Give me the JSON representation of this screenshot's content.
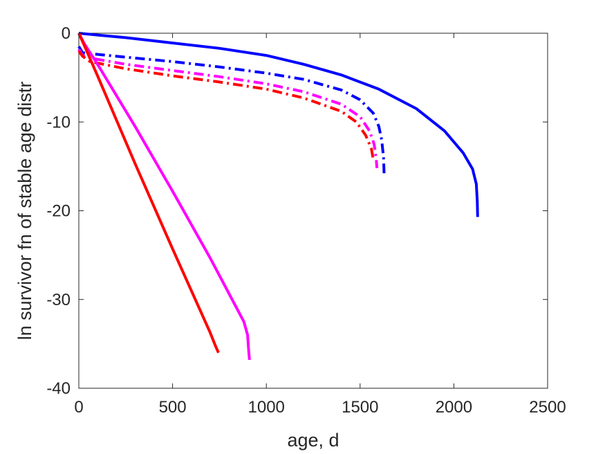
{
  "chart_data": {
    "type": "line",
    "title": "",
    "xlabel": "age, d",
    "ylabel": "ln survivor fn of stable age distr",
    "xlim": [
      0,
      2500
    ],
    "ylim": [
      -40,
      0
    ],
    "xticks": [
      0,
      500,
      1000,
      1500,
      2000,
      2500
    ],
    "yticks": [
      0,
      -10,
      -20,
      -30,
      -40
    ],
    "xtick_labels": [
      "0",
      "500",
      "1000",
      "1500",
      "2000",
      "2500"
    ],
    "ytick_labels": [
      "0",
      "-10",
      "-20",
      "-30",
      "-40"
    ],
    "grid": false,
    "legend": "none",
    "series": [
      {
        "color": "#0000ff",
        "style": "solid",
        "points": [
          [
            0,
            0
          ],
          [
            100,
            -0.2
          ],
          [
            250,
            -0.5
          ],
          [
            500,
            -1.1
          ],
          [
            750,
            -1.7
          ],
          [
            1000,
            -2.5
          ],
          [
            1200,
            -3.5
          ],
          [
            1400,
            -4.7
          ],
          [
            1600,
            -6.3
          ],
          [
            1800,
            -8.5
          ],
          [
            1950,
            -11
          ],
          [
            2050,
            -13.5
          ],
          [
            2100,
            -15.3
          ],
          [
            2120,
            -17
          ],
          [
            2125,
            -19
          ],
          [
            2127,
            -20.7
          ]
        ]
      },
      {
        "color": "#0000ff",
        "style": "dashdot",
        "points": [
          [
            0,
            -1.5
          ],
          [
            20,
            -2.2
          ],
          [
            60,
            -2.3
          ],
          [
            250,
            -2.7
          ],
          [
            500,
            -3.2
          ],
          [
            750,
            -3.8
          ],
          [
            1000,
            -4.5
          ],
          [
            1200,
            -5.2
          ],
          [
            1400,
            -6.4
          ],
          [
            1500,
            -7.5
          ],
          [
            1570,
            -9
          ],
          [
            1600,
            -10.5
          ],
          [
            1615,
            -12
          ],
          [
            1625,
            -14
          ],
          [
            1628,
            -15.8
          ]
        ]
      },
      {
        "color": "#ff00ff",
        "style": "dashdot",
        "points": [
          [
            0,
            -1.8
          ],
          [
            20,
            -2.5
          ],
          [
            60,
            -2.8
          ],
          [
            250,
            -3.5
          ],
          [
            500,
            -4.2
          ],
          [
            750,
            -4.9
          ],
          [
            1000,
            -5.7
          ],
          [
            1200,
            -6.6
          ],
          [
            1400,
            -8
          ],
          [
            1500,
            -9.4
          ],
          [
            1550,
            -11
          ],
          [
            1575,
            -12.5
          ],
          [
            1585,
            -14
          ],
          [
            1590,
            -15.2
          ]
        ]
      },
      {
        "color": "#ff0000",
        "style": "dashdot",
        "points": [
          [
            0,
            -2
          ],
          [
            20,
            -2.6
          ],
          [
            60,
            -3.2
          ],
          [
            250,
            -4
          ],
          [
            500,
            -4.8
          ],
          [
            750,
            -5.5
          ],
          [
            1000,
            -6.3
          ],
          [
            1200,
            -7.3
          ],
          [
            1400,
            -8.8
          ],
          [
            1480,
            -10
          ],
          [
            1530,
            -11.5
          ],
          [
            1560,
            -13
          ],
          [
            1570,
            -14.2
          ]
        ]
      },
      {
        "color": "#ff00ff",
        "style": "solid",
        "points": [
          [
            0,
            0
          ],
          [
            30,
            -1.2
          ],
          [
            100,
            -3.5
          ],
          [
            300,
            -10.5
          ],
          [
            500,
            -17.8
          ],
          [
            700,
            -25.3
          ],
          [
            880,
            -32.5
          ],
          [
            900,
            -34
          ],
          [
            905,
            -35.5
          ],
          [
            910,
            -36.8
          ]
        ]
      },
      {
        "color": "#ff0000",
        "style": "solid",
        "points": [
          [
            0,
            0
          ],
          [
            30,
            -1.4
          ],
          [
            100,
            -4.8
          ],
          [
            300,
            -14.7
          ],
          [
            500,
            -24.3
          ],
          [
            700,
            -33.7
          ],
          [
            730,
            -35.3
          ],
          [
            745,
            -36
          ]
        ]
      }
    ]
  }
}
